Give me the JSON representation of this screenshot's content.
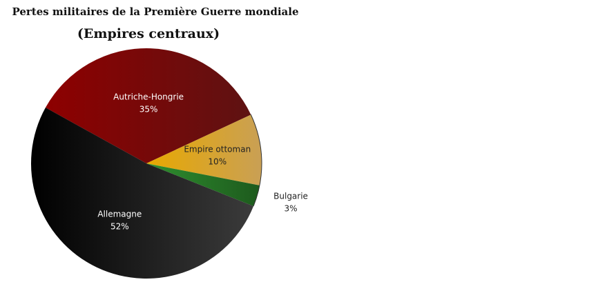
{
  "chart_data": {
    "type": "pie",
    "title": "Pertes militaires de la Première Guerre mondiale",
    "subtitle": "(Empires centraux)",
    "slices": [
      {
        "label": "Autriche-Hongrie",
        "value": 35,
        "value_label": "35%",
        "colors": [
          "#8e0000",
          "#5e1212"
        ],
        "text_color": "#ffffff"
      },
      {
        "label": "Empire ottoman",
        "value": 10,
        "value_label": "10%",
        "colors": [
          "#e8a800",
          "#c9a055"
        ],
        "text_color": "#222222"
      },
      {
        "label": "Bulgarie",
        "value": 3,
        "value_label": "3%",
        "colors": [
          "#2f8f2f",
          "#1d5a1d"
        ],
        "text_color": "#222222"
      },
      {
        "label": "Allemagne",
        "value": 52,
        "value_label": "52%",
        "colors": [
          "#000000",
          "#3b3b3b"
        ],
        "text_color": "#ffffff"
      }
    ]
  }
}
